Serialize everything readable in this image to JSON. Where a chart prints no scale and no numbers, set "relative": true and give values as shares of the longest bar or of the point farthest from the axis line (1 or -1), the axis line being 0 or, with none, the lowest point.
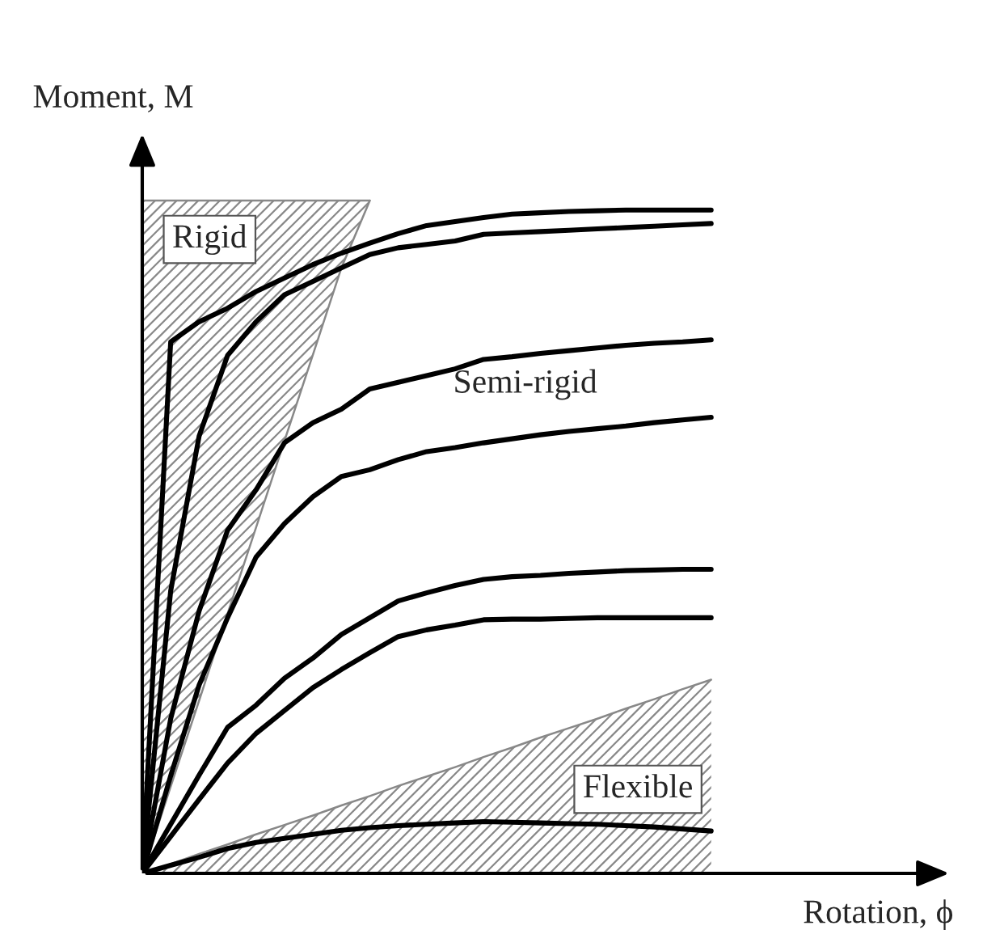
{
  "chart_data": {
    "type": "line",
    "relative": true,
    "xlabel": "Rotation, ϕ",
    "ylabel": "Moment, M",
    "legend": false,
    "categories": [
      null,
      null,
      null,
      null,
      null,
      null,
      null,
      null,
      null,
      null,
      null,
      null,
      null,
      null,
      null,
      null,
      null,
      null,
      null,
      null,
      null
    ],
    "series": [
      {
        "type": "line",
        "color": "#888888",
        "values": [
          0,
          0.129,
          0.257,
          0.386,
          0.514,
          0.643,
          0.771,
          0.9,
          1,
          null,
          null,
          null,
          null,
          null,
          null,
          null,
          null,
          null,
          null,
          null,
          null
        ],
        "lower": [
          0,
          0.129,
          0.257,
          0.386,
          0.514,
          0.643,
          0.771,
          0.9,
          1,
          null,
          null,
          null,
          null,
          null,
          null,
          null,
          null,
          null,
          null,
          null,
          null
        ],
        "upper": [
          1,
          1,
          1,
          1,
          1,
          1,
          1,
          1,
          1,
          null,
          null,
          null,
          null,
          null,
          null,
          null,
          null,
          null,
          null,
          null,
          null
        ]
      },
      {
        "type": "area",
        "color": "#888888",
        "values": [
          0,
          0.014,
          0.029,
          0.043,
          0.058,
          0.072,
          0.086,
          0.101,
          0.115,
          0.13,
          0.144,
          0.158,
          0.173,
          0.187,
          0.202,
          0.216,
          0.23,
          0.245,
          0.259,
          0.274,
          0.288
        ]
      },
      {
        "color": "#000000",
        "values": [
          0,
          0.79,
          0.82,
          0.84,
          0.865,
          0.885,
          0.905,
          0.922,
          0.937,
          0.951,
          0.963,
          0.969,
          0.975,
          0.98,
          0.982,
          0.984,
          0.985,
          0.986,
          0.986,
          0.986,
          0.986
        ]
      },
      {
        "color": "#000000",
        "values": [
          0,
          0.42,
          0.65,
          0.77,
          0.82,
          0.86,
          0.88,
          0.9,
          0.92,
          0.93,
          0.935,
          0.94,
          0.95,
          0.952,
          0.954,
          0.956,
          0.958,
          0.96,
          0.962,
          0.964,
          0.966
        ]
      },
      {
        "color": "#000000",
        "values": [
          0,
          0.23,
          0.39,
          0.51,
          0.57,
          0.64,
          0.67,
          0.69,
          0.72,
          0.73,
          0.74,
          0.75,
          0.764,
          0.768,
          0.773,
          0.777,
          0.781,
          0.785,
          0.788,
          0.79,
          0.793
        ]
      },
      {
        "color": "#000000",
        "values": [
          0,
          0.145,
          0.28,
          0.38,
          0.47,
          0.52,
          0.56,
          0.59,
          0.6,
          0.615,
          0.627,
          0.633,
          0.64,
          0.646,
          0.652,
          0.657,
          0.661,
          0.665,
          0.67,
          0.674,
          0.678
        ]
      },
      {
        "color": "#000000",
        "values": [
          0,
          0.073,
          0.146,
          0.217,
          0.25,
          0.29,
          0.32,
          0.355,
          0.38,
          0.405,
          0.417,
          0.428,
          0.437,
          0.441,
          0.443,
          0.446,
          0.448,
          0.45,
          0.451,
          0.452,
          0.452
        ]
      },
      {
        "color": "#000000",
        "values": [
          0,
          0.055,
          0.11,
          0.164,
          0.208,
          0.242,
          0.276,
          0.303,
          0.328,
          0.352,
          0.362,
          0.369,
          0.377,
          0.378,
          0.378,
          0.379,
          0.38,
          0.38,
          0.38,
          0.38,
          0.38
        ]
      },
      {
        "color": "#000000",
        "values": [
          0,
          0.012,
          0.024,
          0.037,
          0.046,
          0.052,
          0.058,
          0.064,
          0.068,
          0.071,
          0.073,
          0.075,
          0.077,
          0.076,
          0.075,
          0.074,
          0.073,
          0.071,
          0.069,
          0.066,
          0.063
        ]
      }
    ],
    "annotations": [
      "Rigid",
      "Semi-rigid",
      "Flexible"
    ]
  }
}
